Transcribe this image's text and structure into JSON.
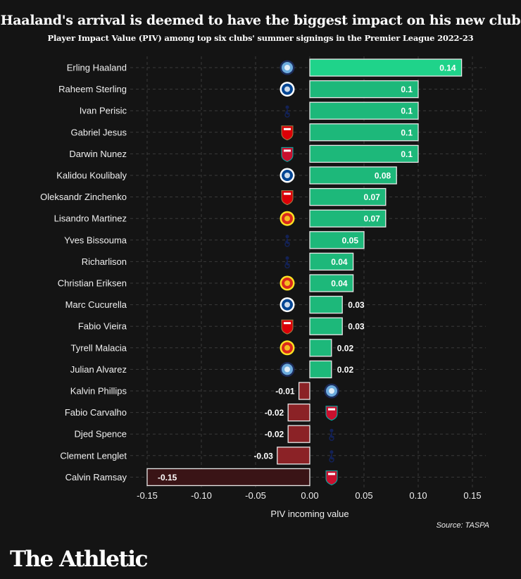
{
  "chart_data": {
    "type": "bar",
    "orientation": "horizontal",
    "title": "Haaland's arrival is deemed to have the biggest impact on his new club",
    "subtitle": "Player Impact Value (PIV) among top six clubs' summer signings in the Premier League 2022-23",
    "xlabel": "PIV incoming value",
    "ylabel": "",
    "xlim": [
      -0.15,
      0.15
    ],
    "xticks": [
      "-0.15",
      "-0.10",
      "-0.05",
      "0.00",
      "0.05",
      "0.10",
      "0.15"
    ],
    "xtick_values": [
      -0.15,
      -0.1,
      -0.05,
      0.0,
      0.05,
      0.1,
      0.15
    ],
    "grid": true,
    "categories": [
      "Erling Haaland",
      "Raheem Sterling",
      "Ivan Perisic",
      "Gabriel Jesus",
      "Darwin Nunez",
      "Kalidou Koulibaly",
      "Oleksandr Zinchenko",
      "Lisandro Martinez",
      "Yves Bissouma",
      "Richarlison",
      "Christian Eriksen",
      "Marc Cucurella",
      "Fabio Vieira",
      "Tyrell Malacia",
      "Julian Alvarez",
      "Kalvin Phillips",
      "Fabio Carvalho",
      "Djed Spence",
      "Clement Lenglet",
      "Calvin Ramsay"
    ],
    "values": [
      0.14,
      0.1,
      0.1,
      0.1,
      0.1,
      0.08,
      0.07,
      0.07,
      0.05,
      0.04,
      0.04,
      0.03,
      0.03,
      0.02,
      0.02,
      -0.01,
      -0.02,
      -0.02,
      -0.03,
      -0.15
    ],
    "value_labels": [
      "0.14",
      "0.1",
      "0.1",
      "0.1",
      "0.1",
      "0.08",
      "0.07",
      "0.07",
      "0.05",
      "0.04",
      "0.04",
      "0.03",
      "0.03",
      "0.02",
      "0.02",
      "-0.01",
      "-0.02",
      "-0.02",
      "-0.03",
      "-0.15"
    ],
    "clubs": [
      "man-city",
      "chelsea",
      "tottenham",
      "arsenal",
      "liverpool",
      "chelsea",
      "arsenal",
      "man-united",
      "tottenham",
      "tottenham",
      "man-united",
      "chelsea",
      "arsenal",
      "man-united",
      "man-city",
      "man-city",
      "liverpool",
      "tottenham",
      "tottenham",
      "liverpool"
    ],
    "colors": {
      "positive": "#1db87a",
      "top": "#1fd38a",
      "negative": "#8b2226",
      "negative_large": "#3a1416",
      "grid": "#3a3a3a"
    }
  },
  "source": "Source: TASPA",
  "brand": "The Athletic",
  "club_icons": {
    "man-city": {
      "icon": "man-city-crest-icon",
      "fill": "#6cabdd",
      "ring": "#1c2c5b"
    },
    "chelsea": {
      "icon": "chelsea-crest-icon",
      "fill": "#034694",
      "ring": "#ffffff"
    },
    "tottenham": {
      "icon": "tottenham-crest-icon",
      "fill": "#132257",
      "ring": "#132257"
    },
    "arsenal": {
      "icon": "arsenal-crest-icon",
      "fill": "#db0007",
      "ring": "#9c824a"
    },
    "liverpool": {
      "icon": "liverpool-crest-icon",
      "fill": "#c8102e",
      "ring": "#00b2a9"
    },
    "man-united": {
      "icon": "man-united-crest-icon",
      "fill": "#da291c",
      "ring": "#fbe122"
    }
  }
}
